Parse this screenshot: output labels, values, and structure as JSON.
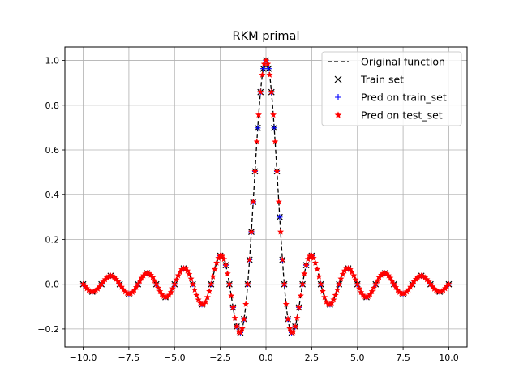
{
  "chart_data": {
    "type": "line",
    "title": "RKM primal",
    "xlabel": "",
    "ylabel": "",
    "xlim": [
      -11.0,
      11.0
    ],
    "ylim": [
      -0.28,
      1.06
    ],
    "xticks": [
      -10.0,
      -7.5,
      -5.0,
      -2.5,
      0.0,
      2.5,
      5.0,
      7.5,
      10.0
    ],
    "xtick_labels": [
      "−10.0",
      "−7.5",
      "−5.0",
      "−2.5",
      "0.0",
      "2.5",
      "5.0",
      "7.5",
      "10.0"
    ],
    "yticks": [
      -0.2,
      0.0,
      0.2,
      0.4,
      0.6,
      0.8,
      1.0
    ],
    "ytick_labels": [
      "−0.2",
      "0.0",
      "0.2",
      "0.4",
      "0.6",
      "0.8",
      "1.0"
    ],
    "grid": true,
    "legend_position": "upper-right",
    "function": "sin(pi*x)/(pi*x)",
    "x_range": [
      -10.0,
      10.0
    ],
    "series": [
      {
        "name": "Original function",
        "style": "dashed-line",
        "color": "#000000",
        "n_points": 400
      },
      {
        "name": "Train set",
        "style": "x-marker",
        "color": "#000000",
        "x": [
          -10.0,
          -9.5,
          -9.0,
          -8.5,
          -8.0,
          -7.5,
          -7.0,
          -6.5,
          -6.0,
          -5.5,
          -5.0,
          -4.5,
          -4.0,
          -3.5,
          -3.0,
          -2.5,
          -2.2,
          -2.0,
          -1.8,
          -1.6,
          -1.4,
          -1.2,
          -1.0,
          -0.9,
          -0.8,
          -0.7,
          -0.6,
          -0.45,
          -0.3,
          -0.15,
          0.0,
          0.15,
          0.3,
          0.45,
          0.6,
          0.75,
          0.9,
          1.0,
          1.2,
          1.4,
          1.6,
          1.8,
          2.0,
          2.2,
          2.5,
          3.0,
          3.5,
          4.0,
          4.5,
          5.0,
          5.5,
          6.0,
          6.5,
          7.0,
          7.5,
          8.0,
          8.5,
          9.0,
          9.5,
          10.0
        ]
      },
      {
        "name": "Pred on train_set",
        "style": "plus-marker",
        "color": "#0000ff"
      },
      {
        "name": "Pred on test_set",
        "style": "star-marker",
        "color": "#ff0000",
        "n_points": 200
      }
    ],
    "colors": {
      "function": "#000000",
      "train": "#000000",
      "pred_train": "#0000ff",
      "pred_test": "#ff0000",
      "grid": "#b0b0b0"
    }
  }
}
